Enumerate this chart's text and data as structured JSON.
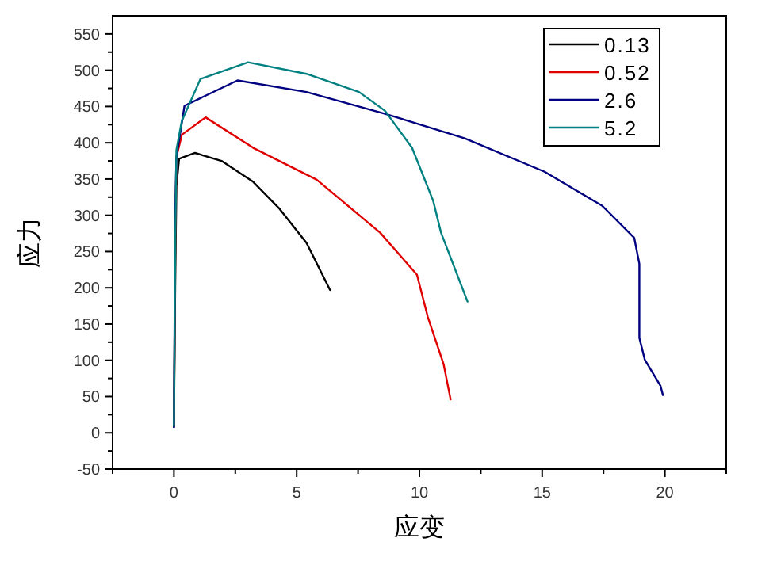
{
  "chart_data": {
    "type": "line",
    "xlabel": "应变",
    "ylabel": "应力",
    "legend": "top right",
    "grid": false,
    "marker": "none",
    "line_style": "solid",
    "xlim": [
      -2.5,
      22.5
    ],
    "ylim": [
      -50,
      575
    ],
    "xticks": [
      {
        "value": -2.5,
        "label": null
      },
      0,
      {
        "value": 2.5,
        "label": null
      },
      5,
      {
        "value": 7.5,
        "label": null
      },
      10,
      {
        "value": 12.5,
        "label": null
      },
      15,
      {
        "value": 17.5,
        "label": null
      },
      20,
      {
        "value": 22.5,
        "label": null
      }
    ],
    "yticks": [
      -50,
      {
        "value": -25,
        "label": null
      },
      0,
      {
        "value": 25,
        "label": null
      },
      50,
      {
        "value": 75,
        "label": null
      },
      100,
      {
        "value": 125,
        "label": null
      },
      150,
      {
        "value": 175,
        "label": null
      },
      200,
      {
        "value": 225,
        "label": null
      },
      250,
      {
        "value": 275,
        "label": null
      },
      300,
      {
        "value": 325,
        "label": null
      },
      350,
      {
        "value": 375,
        "label": null
      },
      400,
      {
        "value": 425,
        "label": null
      },
      450,
      {
        "value": 475,
        "label": null
      },
      500,
      {
        "value": 525,
        "label": null
      },
      550
    ],
    "series": [
      {
        "name": "0.13",
        "color": "#000000",
        "x": [
          0,
          0.05,
          0.1,
          0.21,
          0.86,
          1.94,
          3.23,
          4.3,
          5.4,
          6.36
        ],
        "values": [
          8,
          200,
          340,
          378,
          386,
          375,
          346,
          309,
          262,
          197
        ]
      },
      {
        "name": "0.52",
        "color": "#e00000",
        "x": [
          0,
          0.05,
          0.1,
          0.32,
          1.29,
          3.23,
          5.82,
          8.4,
          9.9,
          10.34,
          10.99,
          11.27
        ],
        "values": [
          10,
          250,
          380,
          411,
          435,
          393,
          349,
          276,
          218,
          160,
          94,
          46
        ]
      },
      {
        "name": "2.6",
        "color": "#000080",
        "x": [
          0,
          0.05,
          0.1,
          0.43,
          2.59,
          5.4,
          8.6,
          11.85,
          15.1,
          17.45,
          18.75,
          18.96,
          18.96,
          19.18,
          19.82,
          19.92
        ],
        "values": [
          8,
          300,
          380,
          451,
          486,
          470,
          440,
          406,
          360,
          313,
          269,
          233,
          131,
          101,
          65,
          52
        ]
      },
      {
        "name": "5.2",
        "color": "#008080",
        "x": [
          0,
          0.05,
          0.1,
          0.32,
          1.08,
          3.02,
          5.4,
          7.54,
          8.6,
          9.7,
          10.56,
          10.88,
          11.96
        ],
        "values": [
          10,
          250,
          390,
          430,
          488,
          511,
          495,
          470,
          444,
          393,
          320,
          276,
          181
        ]
      }
    ]
  }
}
